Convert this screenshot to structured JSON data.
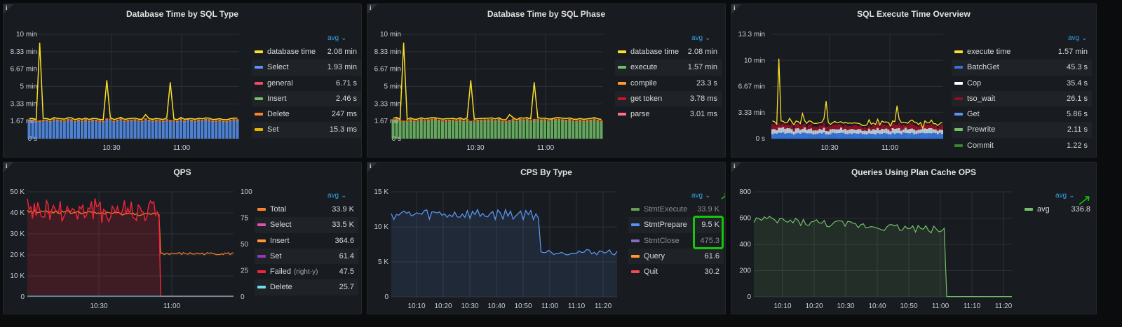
{
  "avg_label": "avg",
  "info_glyph": "i",
  "panels": {
    "p1": {
      "title": "Database Time by SQL Type",
      "y_ticks": [
        "10 min",
        "8.33 min",
        "6.67 min",
        "5 min",
        "3.33 min",
        "1.67 min",
        "0 s"
      ],
      "x_ticks": [
        "10:30",
        "11:00"
      ],
      "legend": [
        {
          "name": "database time",
          "value": "2.08 min",
          "color": "#fade2a"
        },
        {
          "name": "Select",
          "value": "1.93 min",
          "color": "#5794f2"
        },
        {
          "name": "general",
          "value": "6.71 s",
          "color": "#f2495c"
        },
        {
          "name": "Insert",
          "value": "2.46 s",
          "color": "#73bf69"
        },
        {
          "name": "Delete",
          "value": "247 ms",
          "color": "#ff7f2a"
        },
        {
          "name": "Set",
          "value": "15.3 ms",
          "color": "#e0b400"
        }
      ]
    },
    "p2": {
      "title": "Database Time by SQL Phase",
      "y_ticks": [
        "10 min",
        "8.33 min",
        "6.67 min",
        "5 min",
        "3.33 min",
        "1.67 min",
        "0 s"
      ],
      "x_ticks": [
        "10:30",
        "11:00"
      ],
      "legend": [
        {
          "name": "database time",
          "value": "2.08 min",
          "color": "#fade2a"
        },
        {
          "name": "execute",
          "value": "1.57 min",
          "color": "#73bf69"
        },
        {
          "name": "compile",
          "value": "23.3 s",
          "color": "#ff9830"
        },
        {
          "name": "get token",
          "value": "3.78 ms",
          "color": "#c4162a"
        },
        {
          "name": "parse",
          "value": "3.01 ms",
          "color": "#ff7383"
        }
      ]
    },
    "p3": {
      "title": "SQL Execute Time Overview",
      "y_ticks": [
        "13.3 min",
        "10 min",
        "6.67 min",
        "3.33 min",
        "0 s"
      ],
      "x_ticks": [
        "10:30",
        "11:00"
      ],
      "legend": [
        {
          "name": "execute time",
          "value": "1.57 min",
          "color": "#fade2a"
        },
        {
          "name": "BatchGet",
          "value": "45.3 s",
          "color": "#3274d9"
        },
        {
          "name": "Cop",
          "value": "35.4 s",
          "color": "#ffffff"
        },
        {
          "name": "tso_wait",
          "value": "26.1 s",
          "color": "#8f0f26"
        },
        {
          "name": "Get",
          "value": "5.86 s",
          "color": "#5794f2"
        },
        {
          "name": "Prewrite",
          "value": "2.11 s",
          "color": "#73bf69"
        },
        {
          "name": "Commit",
          "value": "1.22 s",
          "color": "#37872d"
        }
      ]
    },
    "p4": {
      "title": "QPS",
      "y_ticks": [
        "50 K",
        "40 K",
        "30 K",
        "20 K",
        "10 K",
        "0"
      ],
      "y2_ticks": [
        "100",
        "75",
        "50",
        "25",
        "0"
      ],
      "x_ticks": [
        "10:30",
        "11:00"
      ],
      "legend": [
        {
          "name": "Total",
          "value": "33.9 K",
          "color": "#ff7f2a"
        },
        {
          "name": "Select",
          "value": "33.5 K",
          "color": "#e055a4"
        },
        {
          "name": "Insert",
          "value": "364.6",
          "color": "#ff9830"
        },
        {
          "name": "Set",
          "value": "61.4",
          "color": "#8f3bb8"
        },
        {
          "name": "Failed",
          "note": "(right-y)",
          "value": "47.5",
          "color": "#f2243c"
        },
        {
          "name": "Delete",
          "value": "25.7",
          "color": "#70dbed"
        }
      ]
    },
    "p5": {
      "title": "CPS By Type",
      "y_ticks": [
        "15 K",
        "10 K",
        "5 K",
        "0"
      ],
      "x_ticks": [
        "10:10",
        "10:20",
        "10:30",
        "10:40",
        "10:50",
        "11:00",
        "11:10",
        "11:20"
      ],
      "legend": [
        {
          "name": "StmtExecute",
          "value": "33.9 K",
          "color": "#629e51"
        },
        {
          "name": "StmtPrepare",
          "value": "9.5 K",
          "color": "#5794f2"
        },
        {
          "name": "StmtClose",
          "value": "475.3",
          "color": "#806eb7"
        },
        {
          "name": "Query",
          "value": "61.6",
          "color": "#ff9830"
        },
        {
          "name": "Quit",
          "value": "30.2",
          "color": "#f2495c"
        }
      ]
    },
    "p6": {
      "title": "Queries Using Plan Cache OPS",
      "y_ticks": [
        "800",
        "600",
        "400",
        "200",
        "0"
      ],
      "x_ticks": [
        "10:10",
        "10:20",
        "10:30",
        "10:40",
        "10:50",
        "11:00",
        "11:10",
        "11:20"
      ],
      "legend": [
        {
          "name": "avg",
          "value": "336.8",
          "color": "#73bf69"
        }
      ]
    }
  }
}
